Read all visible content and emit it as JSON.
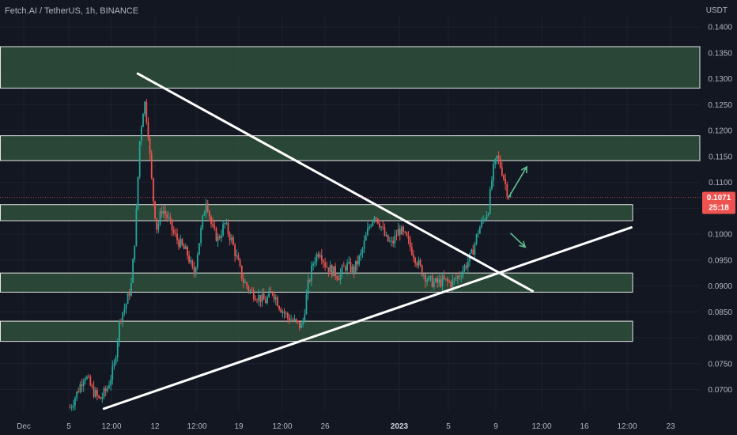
{
  "header": {
    "title": "Fetch.AI / TetherUS, 1h, BINANCE",
    "currency": "USDT"
  },
  "colors": {
    "background": "#131722",
    "up": "#26a69a",
    "down": "#ef5350",
    "zone_fill": "#2f4f3a",
    "zone_stroke": "#e6e6e6",
    "trendline": "#ffffff",
    "arrow": "#5fbf8f",
    "price_tag": "#ef5350"
  },
  "chart_data": {
    "type": "candlestick",
    "y_axis": {
      "ticks": [
        "0.1400",
        "0.1350",
        "0.1300",
        "0.1250",
        "0.1200",
        "0.1150",
        "0.1100",
        "0.1050",
        "0.1000",
        "0.0950",
        "0.0900",
        "0.0850",
        "0.0800",
        "0.0750",
        "0.0700"
      ],
      "range": [
        0.0655,
        0.142
      ]
    },
    "x_axis": {
      "ticks": [
        {
          "label": "Dec",
          "bold": false
        },
        {
          "label": "5",
          "bold": false
        },
        {
          "label": "12:00",
          "bold": false
        },
        {
          "label": "12",
          "bold": false
        },
        {
          "label": "12:00",
          "bold": false
        },
        {
          "label": "19",
          "bold": false
        },
        {
          "label": "12:00",
          "bold": false
        },
        {
          "label": "26",
          "bold": false
        },
        {
          "label": "2023",
          "bold": true
        },
        {
          "label": "5",
          "bold": false
        },
        {
          "label": "9",
          "bold": false
        },
        {
          "label": "12:00",
          "bold": false
        },
        {
          "label": "16",
          "bold": false
        },
        {
          "label": "12:00",
          "bold": false
        },
        {
          "label": "23",
          "bold": false
        }
      ]
    },
    "last_price": {
      "value": "0.1071",
      "countdown": "25:18"
    },
    "zones": [
      {
        "low": 0.1282,
        "high": 0.1362
      },
      {
        "low": 0.1142,
        "high": 0.119
      },
      {
        "low": 0.1026,
        "high": 0.1057
      },
      {
        "low": 0.0888,
        "high": 0.0925
      },
      {
        "low": 0.0793,
        "high": 0.0832
      }
    ],
    "trendlines": [
      {
        "from": {
          "t": 0.187,
          "p": 0.131
        },
        "to": {
          "t": 0.723,
          "p": 0.089
        }
      },
      {
        "from": {
          "t": 0.141,
          "p": 0.0663
        },
        "to": {
          "t": 0.857,
          "p": 0.1013
        }
      }
    ],
    "arrows": [
      {
        "from": {
          "t": 0.69,
          "p": 0.107
        },
        "to": {
          "t": 0.715,
          "p": 0.113
        }
      },
      {
        "from": {
          "t": 0.693,
          "p": 0.1002
        },
        "to": {
          "t": 0.713,
          "p": 0.0975
        }
      }
    ],
    "price_path": [
      [
        0.095,
        0.0665
      ],
      [
        0.105,
        0.0695
      ],
      [
        0.115,
        0.073
      ],
      [
        0.125,
        0.07
      ],
      [
        0.135,
        0.068
      ],
      [
        0.145,
        0.07
      ],
      [
        0.155,
        0.0745
      ],
      [
        0.163,
        0.084
      ],
      [
        0.17,
        0.086
      ],
      [
        0.178,
        0.09
      ],
      [
        0.184,
        0.101
      ],
      [
        0.19,
        0.119
      ],
      [
        0.196,
        0.126
      ],
      [
        0.201,
        0.12
      ],
      [
        0.207,
        0.108
      ],
      [
        0.213,
        0.101
      ],
      [
        0.22,
        0.105
      ],
      [
        0.228,
        0.103
      ],
      [
        0.236,
        0.1
      ],
      [
        0.245,
        0.098
      ],
      [
        0.255,
        0.096
      ],
      [
        0.263,
        0.092
      ],
      [
        0.272,
        0.1
      ],
      [
        0.28,
        0.107
      ],
      [
        0.288,
        0.101
      ],
      [
        0.296,
        0.099
      ],
      [
        0.305,
        0.102
      ],
      [
        0.314,
        0.099
      ],
      [
        0.322,
        0.095
      ],
      [
        0.33,
        0.091
      ],
      [
        0.34,
        0.089
      ],
      [
        0.35,
        0.088
      ],
      [
        0.36,
        0.087
      ],
      [
        0.37,
        0.089
      ],
      [
        0.38,
        0.086
      ],
      [
        0.39,
        0.084
      ],
      [
        0.4,
        0.083
      ],
      [
        0.41,
        0.082
      ],
      [
        0.418,
        0.09
      ],
      [
        0.426,
        0.095
      ],
      [
        0.434,
        0.097
      ],
      [
        0.442,
        0.094
      ],
      [
        0.45,
        0.093
      ],
      [
        0.46,
        0.092
      ],
      [
        0.47,
        0.094
      ],
      [
        0.48,
        0.093
      ],
      [
        0.49,
        0.096
      ],
      [
        0.5,
        0.101
      ],
      [
        0.508,
        0.104
      ],
      [
        0.516,
        0.102
      ],
      [
        0.524,
        0.099
      ],
      [
        0.532,
        0.098
      ],
      [
        0.542,
        0.101
      ],
      [
        0.552,
        0.099
      ],
      [
        0.562,
        0.096
      ],
      [
        0.572,
        0.093
      ],
      [
        0.582,
        0.091
      ],
      [
        0.592,
        0.0905
      ],
      [
        0.602,
        0.091
      ],
      [
        0.612,
        0.0905
      ],
      [
        0.62,
        0.0915
      ],
      [
        0.63,
        0.0935
      ],
      [
        0.64,
        0.096
      ],
      [
        0.65,
        0.101
      ],
      [
        0.657,
        0.103
      ],
      [
        0.663,
        0.105
      ],
      [
        0.669,
        0.112
      ],
      [
        0.675,
        0.115
      ],
      [
        0.682,
        0.112
      ],
      [
        0.688,
        0.1085
      ],
      [
        0.693,
        0.1071
      ]
    ]
  }
}
